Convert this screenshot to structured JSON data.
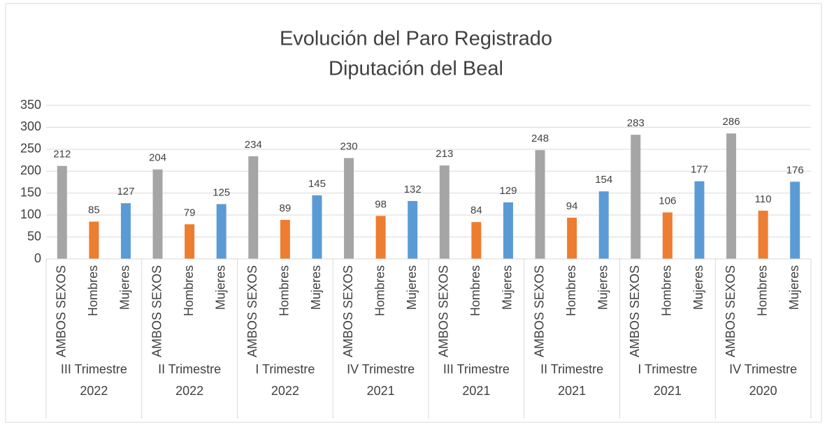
{
  "chart_data": {
    "type": "bar",
    "title": "Evolución del Paro Registrado",
    "subtitle": "Diputación del Beal",
    "categories": [
      "III Trimestre 2022",
      "II Trimestre 2022",
      "I Trimestre 2022",
      "IV Trimestre 2021",
      "III Trimestre 2021",
      "II Trimestre 2021",
      "I Trimestre 2021",
      "IV Trimestre 2020"
    ],
    "series": [
      {
        "name": "AMBOS SEXOS",
        "color": "#a5a5a5",
        "values": [
          212,
          204,
          234,
          230,
          213,
          248,
          283,
          286
        ]
      },
      {
        "name": "Hombres",
        "color": "#ed7d31",
        "values": [
          85,
          79,
          89,
          98,
          84,
          94,
          106,
          110
        ]
      },
      {
        "name": "Mujeres",
        "color": "#5b9bd5",
        "values": [
          127,
          125,
          145,
          132,
          129,
          154,
          177,
          176
        ]
      }
    ],
    "ylim": [
      0,
      350
    ],
    "yticks": [
      0,
      50,
      100,
      150,
      200,
      250,
      300,
      350
    ],
    "grid": true
  }
}
